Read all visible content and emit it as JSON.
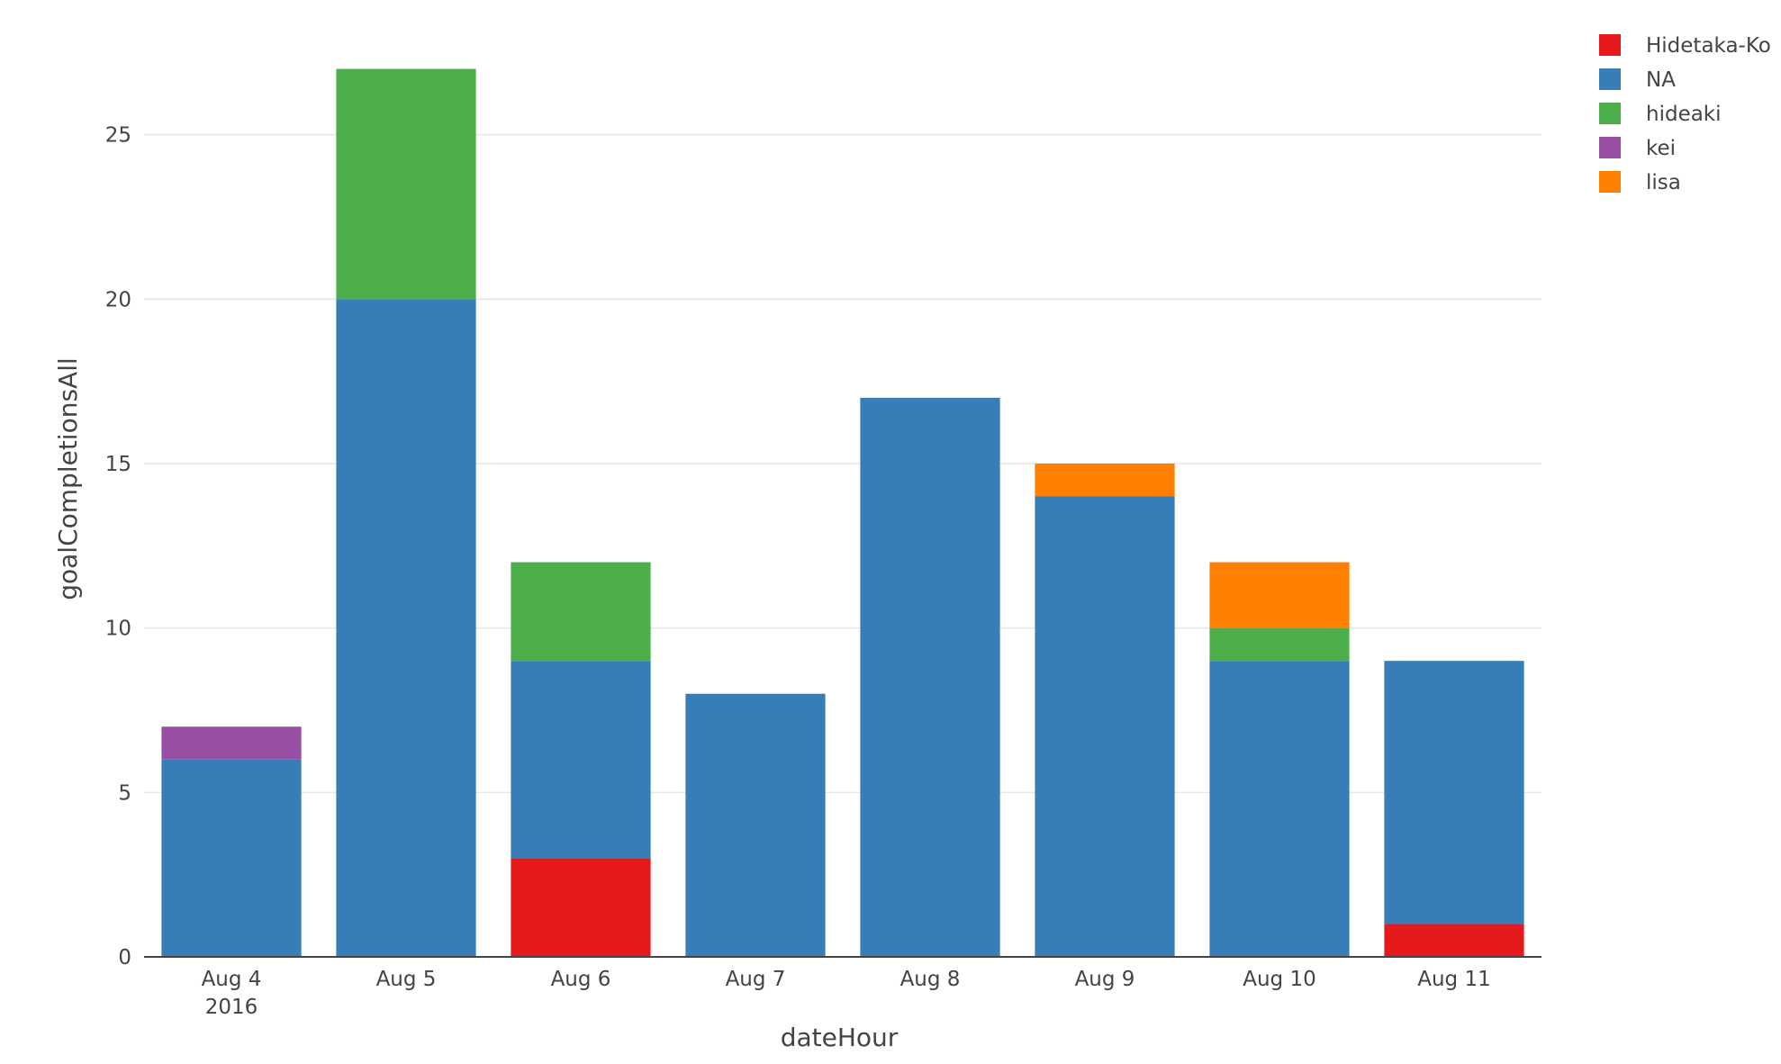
{
  "chart_data": {
    "type": "bar",
    "barmode": "stack",
    "title": "",
    "xlabel": "dateHour",
    "ylabel": "goalCompletionsAll",
    "categories": [
      "Aug 4\n2016",
      "Aug 5",
      "Aug 6",
      "Aug 7",
      "Aug 8",
      "Aug 9",
      "Aug 10",
      "Aug 11"
    ],
    "ylim": [
      0,
      28
    ],
    "yticks": [
      0,
      5,
      10,
      15,
      20,
      25
    ],
    "grid": true,
    "legend_position": "top-right",
    "series": [
      {
        "name": "Hidetaka-Ko",
        "color": "#e41a1c",
        "values": [
          0,
          0,
          3,
          0,
          0,
          0,
          0,
          1
        ]
      },
      {
        "name": "NA",
        "color": "#377eb8",
        "values": [
          6,
          20,
          6,
          8,
          17,
          14,
          9,
          8
        ]
      },
      {
        "name": "hideaki",
        "color": "#4daf4a",
        "values": [
          0,
          7,
          3,
          0,
          0,
          0,
          1,
          0
        ]
      },
      {
        "name": "kei",
        "color": "#984ea3",
        "values": [
          1,
          0,
          0,
          0,
          0,
          0,
          0,
          0
        ]
      },
      {
        "name": "lisa",
        "color": "#ff7f00",
        "values": [
          0,
          0,
          0,
          0,
          0,
          1,
          2,
          0
        ]
      }
    ]
  }
}
